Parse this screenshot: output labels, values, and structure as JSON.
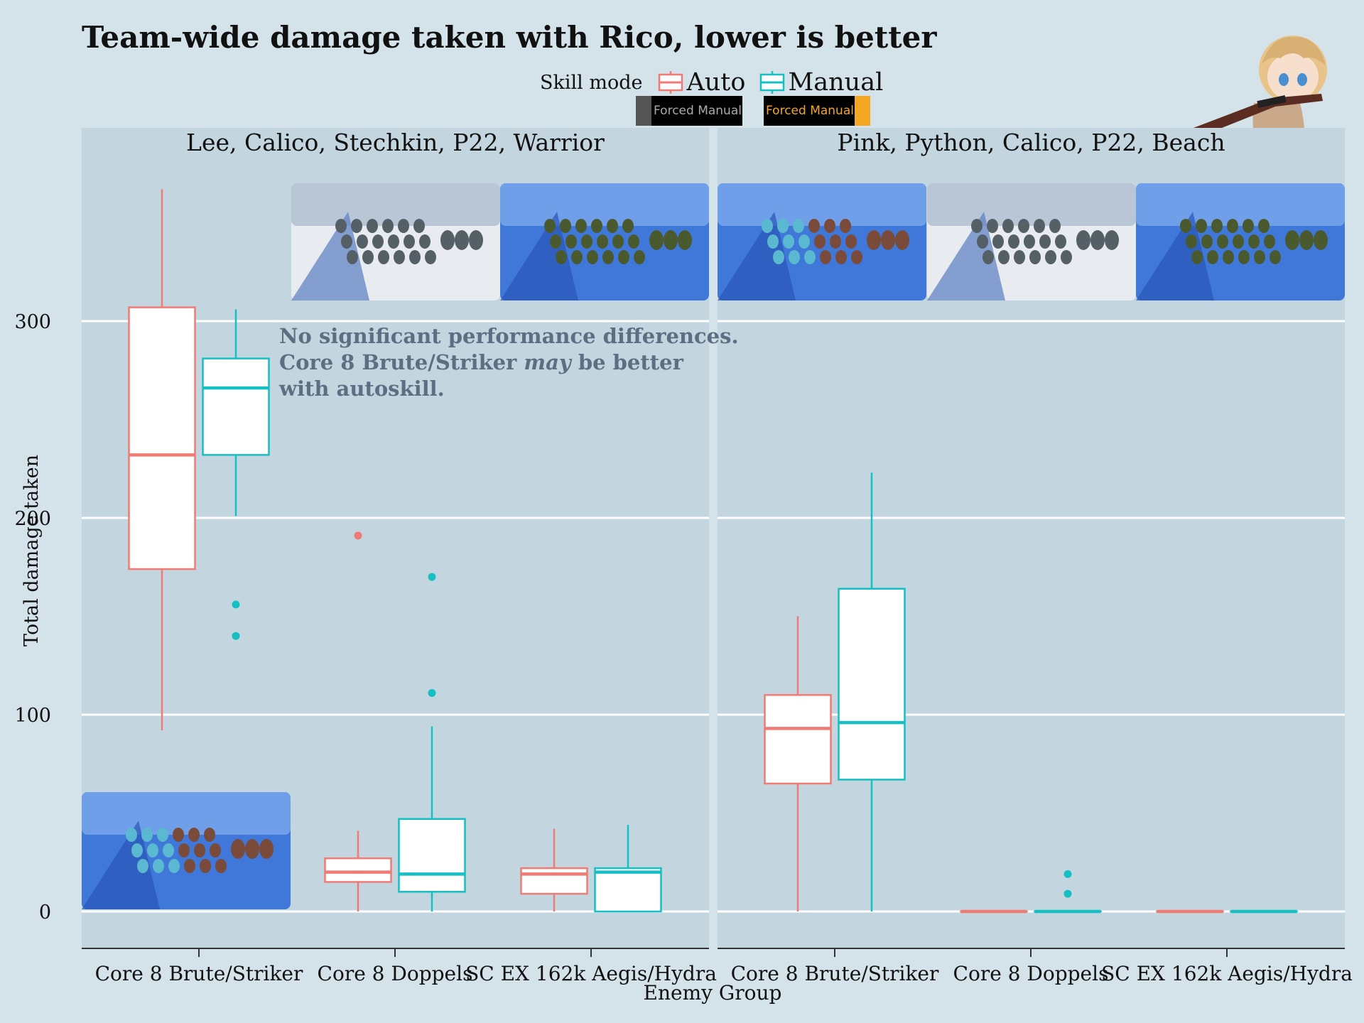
{
  "title": "Team-wide damage taken with Rico, lower is better",
  "legend": {
    "title": "Skill mode",
    "items": [
      {
        "label": "Auto",
        "color": "#f07a74"
      },
      {
        "label": "Manual",
        "color": "#16bfc4"
      }
    ]
  },
  "badges": [
    "Forced Manual",
    "Forced Manual"
  ],
  "annotation": {
    "line1": "No significant performance differences.",
    "line2_pre": "Core 8 Brute/Striker ",
    "line2_em": "may",
    "line2_post": " be better",
    "line3": "with autoskill."
  },
  "chart_data": {
    "type": "boxplot",
    "title": "Team-wide damage taken with Rico, lower is better",
    "xlabel": "Enemy Group",
    "ylabel": "Total damage taken",
    "ylim": [
      -18,
      372
    ],
    "yticks": [
      0,
      100,
      200,
      300
    ],
    "categories": [
      "Core 8 Brute/Striker",
      "Core 8 Doppels",
      "SC EX 162k Aegis/Hydra"
    ],
    "legend_position": "top",
    "grid": true,
    "panels": [
      {
        "name": "Lee, Calico, Stechkin, P22, Warrior",
        "series": [
          {
            "name": "Auto",
            "boxes": [
              {
                "min": 92,
                "q1": 174,
                "median": 232,
                "q3": 307,
                "max": 367,
                "outliers": []
              },
              {
                "min": 0,
                "q1": 15,
                "median": 20,
                "q3": 27,
                "max": 41,
                "outliers": [
                  191
                ]
              },
              {
                "min": 0,
                "q1": 9,
                "median": 19,
                "q3": 22,
                "max": 42,
                "outliers": []
              }
            ]
          },
          {
            "name": "Manual",
            "boxes": [
              {
                "min": 201,
                "q1": 232,
                "median": 266,
                "q3": 281,
                "max": 306,
                "outliers": [
                  156,
                  140
                ]
              },
              {
                "min": 0,
                "q1": 10,
                "median": 19,
                "q3": 47,
                "max": 94,
                "outliers": [
                  170,
                  111
                ]
              },
              {
                "min": 0,
                "q1": 0,
                "median": 20,
                "q3": 22,
                "max": 44,
                "outliers": []
              }
            ]
          }
        ]
      },
      {
        "name": "Pink, Python, Calico, P22, Beach",
        "series": [
          {
            "name": "Auto",
            "boxes": [
              {
                "min": 0,
                "q1": 65,
                "median": 93,
                "q3": 110,
                "max": 150,
                "outliers": []
              },
              {
                "min": 0,
                "q1": 0,
                "median": 0,
                "q3": 0,
                "max": 0,
                "outliers": []
              },
              {
                "min": 0,
                "q1": 0,
                "median": 0,
                "q3": 0,
                "max": 0,
                "outliers": []
              }
            ]
          },
          {
            "name": "Manual",
            "boxes": [
              {
                "min": 0,
                "q1": 67,
                "median": 96,
                "q3": 164,
                "max": 223,
                "outliers": []
              },
              {
                "min": 0,
                "q1": 0,
                "median": 0,
                "q3": 0,
                "max": 0,
                "outliers": [
                  19,
                  9
                ]
              },
              {
                "min": 0,
                "q1": 0,
                "median": 0,
                "q3": 0,
                "max": 0,
                "outliers": []
              }
            ]
          }
        ]
      }
    ]
  }
}
